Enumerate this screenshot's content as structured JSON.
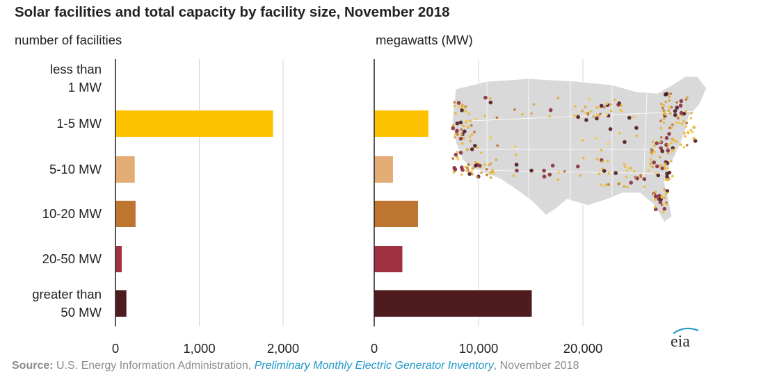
{
  "title": "Solar facilities and total capacity by facility size, November 2018",
  "left_subtitle": "number of facilities",
  "right_subtitle": "megawatts (MW)",
  "source": {
    "label": "Source:",
    "org": "U.S. Energy Information Administration, ",
    "publication": "Preliminary Monthly Electric Generator Inventory",
    "date": ", November 2018"
  },
  "logo_text": "eia",
  "colors": {
    "less than 1 MW": "#e8e8e8",
    "1-5 MW": "#fdc300",
    "5-10 MW": "#e3ad75",
    "10-20 MW": "#bf7532",
    "20-50 MW": "#a13242",
    "greater than 50 MW": "#4e1b1f",
    "grid": "#d4d4d4",
    "axis": "#222222",
    "map_fill": "#d9d9d9"
  },
  "chart_data": [
    {
      "type": "bar",
      "orientation": "horizontal",
      "title": "Solar facilities and total capacity by facility size, November 2018",
      "xlabel": "number of facilities",
      "categories": [
        "less than\n1 MW",
        "1-5 MW",
        "5-10 MW",
        "10-20 MW",
        "20-50 MW",
        "greater than\n50 MW"
      ],
      "values": [
        5,
        1880,
        230,
        240,
        75,
        130
      ],
      "xlim": [
        0,
        2000
      ],
      "ticks": [
        0,
        1000,
        2000
      ],
      "tick_labels": [
        "0",
        "1,000",
        "2,000"
      ],
      "grid": true
    },
    {
      "type": "bar",
      "orientation": "horizontal",
      "xlabel": "megawatts (MW)",
      "categories": [
        "less than\n1 MW",
        "1-5 MW",
        "5-10 MW",
        "10-20 MW",
        "20-50 MW",
        "greater than\n50 MW"
      ],
      "values": [
        0,
        5200,
        1800,
        4200,
        2700,
        15100
      ],
      "xlim": [
        0,
        20000
      ],
      "ticks": [
        0,
        10000,
        20000
      ],
      "tick_labels": [
        "0",
        "10,000",
        "20,000"
      ],
      "grid": true
    }
  ]
}
